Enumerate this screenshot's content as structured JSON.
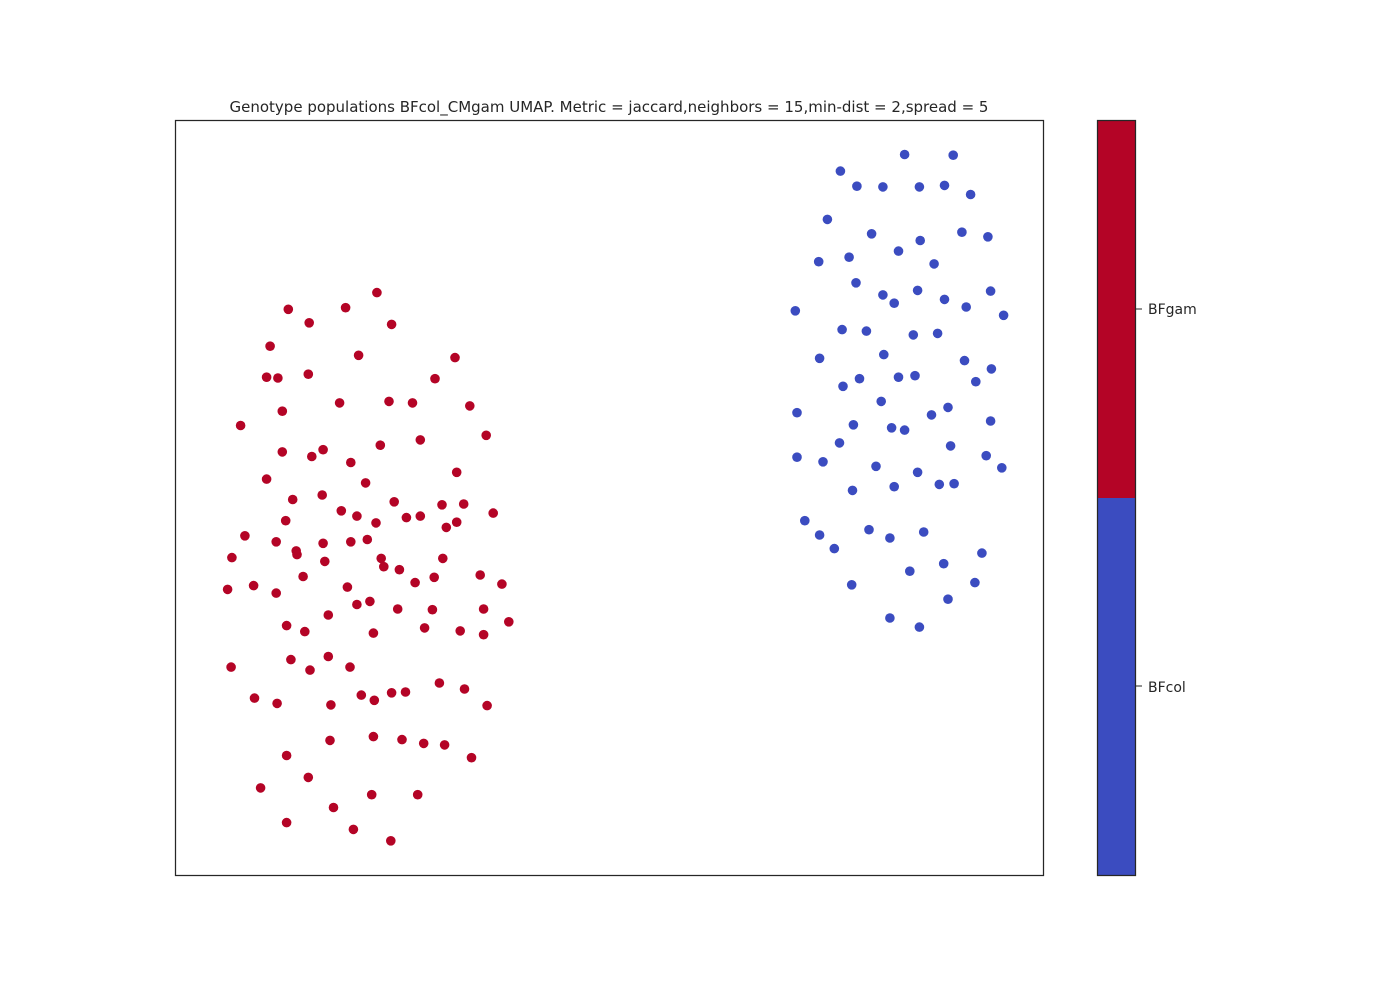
{
  "chart_data": {
    "type": "scatter",
    "title": "Genotype populations BFcol_CMgam UMAP. Metric = jaccard,neighbors = 15,min-dist = 2,spread = 5",
    "xlabel": "",
    "ylabel": "",
    "xlim": [
      0,
      100
    ],
    "ylim": [
      0,
      100
    ],
    "grid": false,
    "colorbar": {
      "ticks": [
        "BFgam",
        "BFcol"
      ],
      "colors": {
        "BFgam": "#b40426",
        "BFcol": "#3b4cc0"
      }
    },
    "series": [
      {
        "name": "BFgam",
        "color": "#b40426",
        "points": [
          [
            23.2,
            77.2
          ],
          [
            13.0,
            75.0
          ],
          [
            19.6,
            75.2
          ],
          [
            15.4,
            73.2
          ],
          [
            24.9,
            73.0
          ],
          [
            10.9,
            70.1
          ],
          [
            21.1,
            68.9
          ],
          [
            32.2,
            68.6
          ],
          [
            10.5,
            66.0
          ],
          [
            11.8,
            65.9
          ],
          [
            15.3,
            66.4
          ],
          [
            29.9,
            65.8
          ],
          [
            18.9,
            62.6
          ],
          [
            12.3,
            61.5
          ],
          [
            24.6,
            62.8
          ],
          [
            27.3,
            62.6
          ],
          [
            33.9,
            62.2
          ],
          [
            7.5,
            59.6
          ],
          [
            17.0,
            56.4
          ],
          [
            23.6,
            57.0
          ],
          [
            28.2,
            57.7
          ],
          [
            35.8,
            58.3
          ],
          [
            12.3,
            56.1
          ],
          [
            10.5,
            52.5
          ],
          [
            15.7,
            55.5
          ],
          [
            20.2,
            54.7
          ],
          [
            16.9,
            50.4
          ],
          [
            20.9,
            47.6
          ],
          [
            25.2,
            49.5
          ],
          [
            30.7,
            49.1
          ],
          [
            32.4,
            53.4
          ],
          [
            21.9,
            52.0
          ],
          [
            28.2,
            47.6
          ],
          [
            33.2,
            49.2
          ],
          [
            36.6,
            48.0
          ],
          [
            8.0,
            45.0
          ],
          [
            13.5,
            49.8
          ],
          [
            26.6,
            47.4
          ],
          [
            32.4,
            46.8
          ],
          [
            19.1,
            48.3
          ],
          [
            12.7,
            47.0
          ],
          [
            23.1,
            46.7
          ],
          [
            31.2,
            46.1
          ],
          [
            6.5,
            42.1
          ],
          [
            17.0,
            44.0
          ],
          [
            13.9,
            43.0
          ],
          [
            11.6,
            44.2
          ],
          [
            14.0,
            42.5
          ],
          [
            20.2,
            44.2
          ],
          [
            17.2,
            41.6
          ],
          [
            22.1,
            44.5
          ],
          [
            23.7,
            42.0
          ],
          [
            24.0,
            40.9
          ],
          [
            25.8,
            40.5
          ],
          [
            30.8,
            42.0
          ],
          [
            19.8,
            38.2
          ],
          [
            27.6,
            38.8
          ],
          [
            29.8,
            39.5
          ],
          [
            35.1,
            39.8
          ],
          [
            37.6,
            38.6
          ],
          [
            9.0,
            38.4
          ],
          [
            14.7,
            39.6
          ],
          [
            11.6,
            37.4
          ],
          [
            6.0,
            37.9
          ],
          [
            20.9,
            35.9
          ],
          [
            22.4,
            36.3
          ],
          [
            25.6,
            35.3
          ],
          [
            29.6,
            35.2
          ],
          [
            35.5,
            35.3
          ],
          [
            38.4,
            33.6
          ],
          [
            17.6,
            34.5
          ],
          [
            12.8,
            33.1
          ],
          [
            14.9,
            32.3
          ],
          [
            22.8,
            32.1
          ],
          [
            28.7,
            32.8
          ],
          [
            32.8,
            32.4
          ],
          [
            35.5,
            31.9
          ],
          [
            13.3,
            28.6
          ],
          [
            6.4,
            27.6
          ],
          [
            15.5,
            27.2
          ],
          [
            17.6,
            29.0
          ],
          [
            20.1,
            27.6
          ],
          [
            30.4,
            25.5
          ],
          [
            33.3,
            24.7
          ],
          [
            9.1,
            23.5
          ],
          [
            11.7,
            22.8
          ],
          [
            17.9,
            22.6
          ],
          [
            21.4,
            23.9
          ],
          [
            22.9,
            23.2
          ],
          [
            24.9,
            24.2
          ],
          [
            26.5,
            24.3
          ],
          [
            35.9,
            22.5
          ],
          [
            26.1,
            18.0
          ],
          [
            31.0,
            17.3
          ],
          [
            28.6,
            17.5
          ],
          [
            34.1,
            15.6
          ],
          [
            22.8,
            18.4
          ],
          [
            17.8,
            17.9
          ],
          [
            12.8,
            15.9
          ],
          [
            15.3,
            13.0
          ],
          [
            9.8,
            11.6
          ],
          [
            22.6,
            10.7
          ],
          [
            27.9,
            10.7
          ],
          [
            18.2,
            9.0
          ],
          [
            12.8,
            7.0
          ],
          [
            20.5,
            6.1
          ],
          [
            24.8,
            4.6
          ]
        ]
      },
      {
        "name": "BFcol",
        "color": "#3b4cc0",
        "points": [
          [
            84.0,
            95.5
          ],
          [
            89.6,
            95.4
          ],
          [
            76.6,
            93.3
          ],
          [
            78.5,
            91.3
          ],
          [
            81.5,
            91.2
          ],
          [
            85.7,
            91.2
          ],
          [
            88.6,
            91.4
          ],
          [
            91.6,
            90.2
          ],
          [
            75.1,
            86.9
          ],
          [
            80.2,
            85.0
          ],
          [
            90.6,
            85.2
          ],
          [
            93.6,
            84.6
          ],
          [
            83.3,
            82.7
          ],
          [
            77.6,
            81.9
          ],
          [
            85.8,
            84.1
          ],
          [
            74.1,
            81.3
          ],
          [
            87.4,
            81.0
          ],
          [
            78.4,
            78.5
          ],
          [
            81.5,
            76.9
          ],
          [
            85.5,
            77.5
          ],
          [
            88.6,
            76.3
          ],
          [
            91.1,
            75.3
          ],
          [
            93.9,
            77.4
          ],
          [
            71.4,
            74.8
          ],
          [
            82.8,
            75.8
          ],
          [
            76.8,
            72.3
          ],
          [
            79.6,
            72.1
          ],
          [
            85.0,
            71.6
          ],
          [
            87.8,
            71.8
          ],
          [
            95.4,
            74.2
          ],
          [
            74.2,
            68.5
          ],
          [
            81.6,
            69.0
          ],
          [
            90.9,
            68.2
          ],
          [
            94.0,
            67.1
          ],
          [
            78.8,
            65.8
          ],
          [
            76.9,
            64.8
          ],
          [
            83.3,
            66.0
          ],
          [
            85.2,
            66.2
          ],
          [
            92.2,
            65.4
          ],
          [
            81.3,
            62.8
          ],
          [
            71.6,
            61.3
          ],
          [
            78.1,
            59.7
          ],
          [
            82.5,
            59.3
          ],
          [
            84.0,
            59.0
          ],
          [
            87.1,
            61.0
          ],
          [
            89.0,
            62.0
          ],
          [
            93.9,
            60.2
          ],
          [
            76.5,
            57.3
          ],
          [
            71.6,
            55.4
          ],
          [
            74.6,
            54.8
          ],
          [
            80.7,
            54.2
          ],
          [
            85.5,
            53.4
          ],
          [
            89.3,
            56.9
          ],
          [
            93.4,
            55.6
          ],
          [
            95.2,
            54.0
          ],
          [
            78.0,
            51.0
          ],
          [
            82.8,
            51.5
          ],
          [
            88.0,
            51.8
          ],
          [
            89.7,
            51.9
          ],
          [
            72.5,
            47.0
          ],
          [
            79.9,
            45.8
          ],
          [
            74.2,
            45.1
          ],
          [
            75.9,
            43.3
          ],
          [
            82.3,
            44.7
          ],
          [
            86.2,
            45.5
          ],
          [
            84.6,
            40.3
          ],
          [
            88.5,
            41.3
          ],
          [
            92.9,
            42.7
          ],
          [
            77.9,
            38.5
          ],
          [
            89.0,
            36.6
          ],
          [
            92.1,
            38.8
          ],
          [
            82.3,
            34.1
          ],
          [
            85.7,
            32.9
          ]
        ]
      }
    ]
  }
}
